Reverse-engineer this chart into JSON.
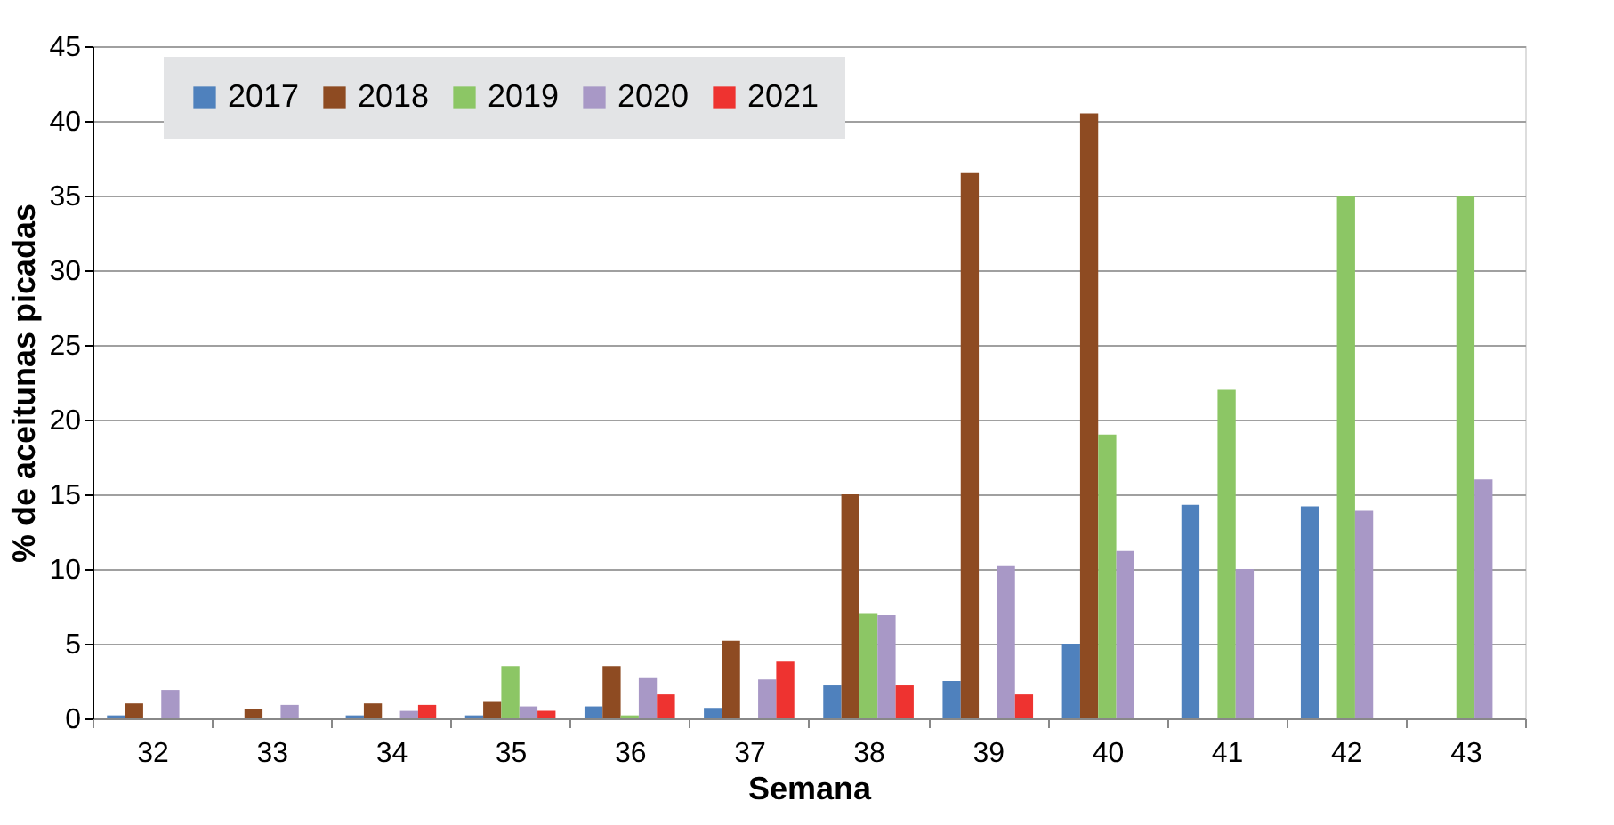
{
  "chart_data": {
    "type": "bar",
    "xlabel": "Semana",
    "ylabel": "% de aceitunas picadas",
    "categories": [
      "32",
      "33",
      "34",
      "35",
      "36",
      "37",
      "38",
      "39",
      "40",
      "41",
      "42",
      "43"
    ],
    "series": [
      {
        "name": "2017",
        "color": "#4f81bd",
        "values": [
          0.2,
          null,
          0.2,
          0.2,
          0.8,
          0.7,
          2.2,
          2.5,
          5,
          14.3,
          14.2,
          null
        ]
      },
      {
        "name": "2018",
        "color": "#8e4b22",
        "values": [
          1.0,
          0.6,
          1.0,
          1.1,
          3.5,
          5.2,
          15,
          36.5,
          40.5,
          null,
          null,
          null
        ]
      },
      {
        "name": "2019",
        "color": "#8cc665",
        "values": [
          null,
          null,
          null,
          3.5,
          0.2,
          null,
          7,
          null,
          19,
          22,
          35,
          35
        ]
      },
      {
        "name": "2020",
        "color": "#a898c6",
        "values": [
          1.9,
          0.9,
          0.5,
          0.8,
          2.7,
          2.6,
          6.9,
          10.2,
          11.2,
          10,
          13.9,
          16
        ]
      },
      {
        "name": "2021",
        "color": "#ee3330",
        "values": [
          null,
          null,
          0.9,
          0.5,
          1.6,
          3.8,
          2.2,
          1.6,
          null,
          null,
          null,
          null
        ]
      }
    ],
    "ylim": [
      0,
      45
    ],
    "yticks": [
      0,
      5,
      10,
      15,
      20,
      25,
      30,
      35,
      40,
      45
    ],
    "grid": "y",
    "legend": "top left"
  }
}
